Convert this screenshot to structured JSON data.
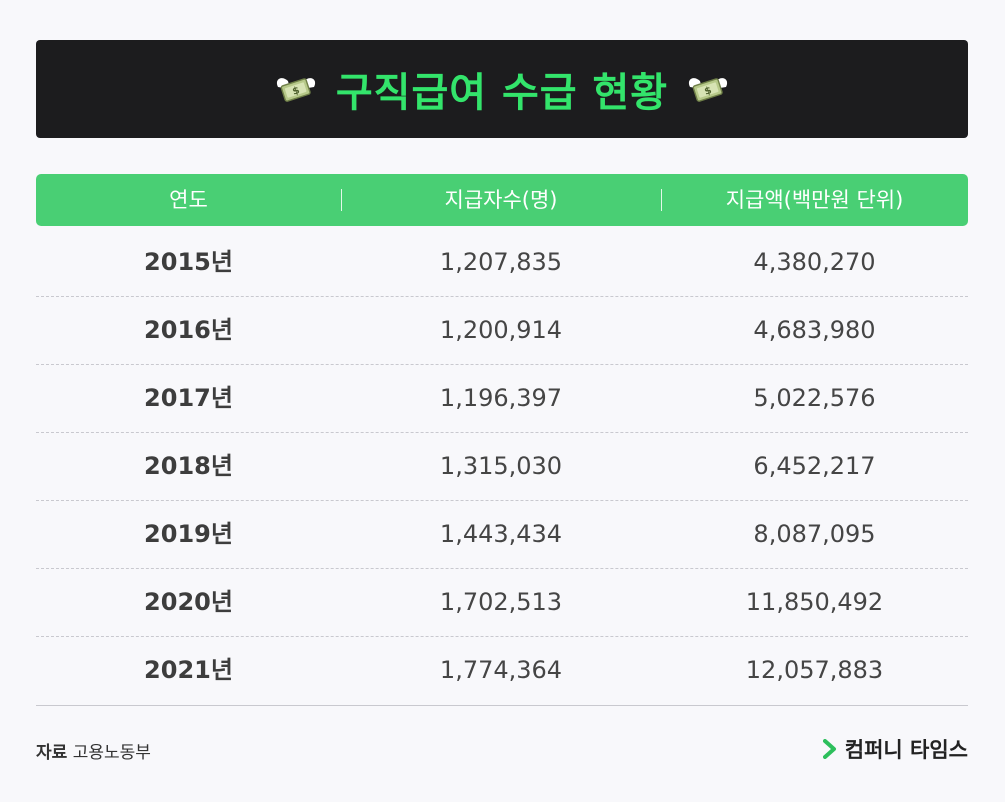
{
  "title": "구직급여 수급 현황",
  "icons": {
    "title_left": "flying-money-icon",
    "title_right": "flying-money-icon",
    "brand": "chevron-right-icon"
  },
  "colors": {
    "title_bg": "#1c1c1e",
    "title_text": "#33e46b",
    "header_bg": "#49cf74",
    "brand_accent": "#2dbf5c"
  },
  "chart_data": {
    "type": "table",
    "title": "구직급여 수급 현황",
    "columns": [
      "연도",
      "지급자수(명)",
      "지급액(백만원 단위)"
    ],
    "rows": [
      [
        "2015년",
        "1,207,835",
        "4,380,270"
      ],
      [
        "2016년",
        "1,200,914",
        "4,683,980"
      ],
      [
        "2017년",
        "1,196,397",
        "5,022,576"
      ],
      [
        "2018년",
        "1,315,030",
        "6,452,217"
      ],
      [
        "2019년",
        "1,443,434",
        "8,087,095"
      ],
      [
        "2020년",
        "1,702,513",
        "11,850,492"
      ],
      [
        "2021년",
        "1,774,364",
        "12,057,883"
      ]
    ]
  },
  "footer": {
    "source_label": "자료",
    "source_value": "고용노동부",
    "brand": "컴퍼니 타임스"
  }
}
